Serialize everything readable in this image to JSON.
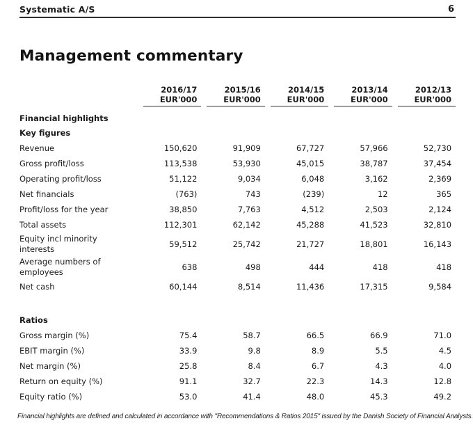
{
  "page": {
    "brand": "Systematic A/S",
    "page_number": "6",
    "title": "Management commentary",
    "footnote": "Financial highlights are defined and calculated in accordance with \"Recommendations & Ratios 2015\" issued by the Danish Society of Financial Analysts."
  },
  "table": {
    "columns": [
      {
        "year": "2016/17",
        "unit": "EUR'000"
      },
      {
        "year": "2015/16",
        "unit": "EUR'000"
      },
      {
        "year": "2014/15",
        "unit": "EUR'000"
      },
      {
        "year": "2013/14",
        "unit": "EUR'000"
      },
      {
        "year": "2012/13",
        "unit": "EUR'000"
      }
    ],
    "sections": [
      {
        "title": "Financial highlights",
        "rows": []
      },
      {
        "title": "Key figures",
        "rows": [
          {
            "label": "Revenue",
            "values": [
              "150,620",
              "91,909",
              "67,727",
              "57,966",
              "52,730"
            ]
          },
          {
            "label": "Gross profit/loss",
            "values": [
              "113,538",
              "53,930",
              "45,015",
              "38,787",
              "37,454"
            ]
          },
          {
            "label": "Operating profit/loss",
            "values": [
              "51,122",
              "9,034",
              "6,048",
              "3,162",
              "2,369"
            ]
          },
          {
            "label": "Net financials",
            "values": [
              "(763)",
              "743",
              "(239)",
              "12",
              "365"
            ]
          },
          {
            "label": "Profit/loss for the year",
            "values": [
              "38,850",
              "7,763",
              "4,512",
              "2,503",
              "2,124"
            ]
          },
          {
            "label": "Total assets",
            "values": [
              "112,301",
              "62,142",
              "45,288",
              "41,523",
              "32,810"
            ]
          },
          {
            "label": "Equity incl minority\ninterests",
            "values": [
              "59,512",
              "25,742",
              "21,727",
              "18,801",
              "16,143"
            ]
          },
          {
            "label": "Average numbers of\nemployees",
            "values": [
              "638",
              "498",
              "444",
              "418",
              "418"
            ]
          },
          {
            "label": "Net cash",
            "values": [
              "60,144",
              "8,514",
              "11,436",
              "17,315",
              "9,584"
            ]
          }
        ]
      },
      {
        "title": "Ratios",
        "gap_before": true,
        "rows": [
          {
            "label": "Gross margin (%)",
            "values": [
              "75.4",
              "58.7",
              "66.5",
              "66.9",
              "71.0"
            ]
          },
          {
            "label": "EBIT margin (%)",
            "values": [
              "33.9",
              "9.8",
              "8.9",
              "5.5",
              "4.5"
            ]
          },
          {
            "label": "Net margin (%)",
            "values": [
              "25.8",
              "8.4",
              "6.7",
              "4.3",
              "4.0"
            ]
          },
          {
            "label": "Return on equity (%)",
            "values": [
              "91.1",
              "32.7",
              "22.3",
              "14.3",
              "12.8"
            ]
          },
          {
            "label": "Equity ratio (%)",
            "values": [
              "53.0",
              "41.4",
              "48.0",
              "45.3",
              "49.2"
            ]
          }
        ]
      }
    ]
  }
}
